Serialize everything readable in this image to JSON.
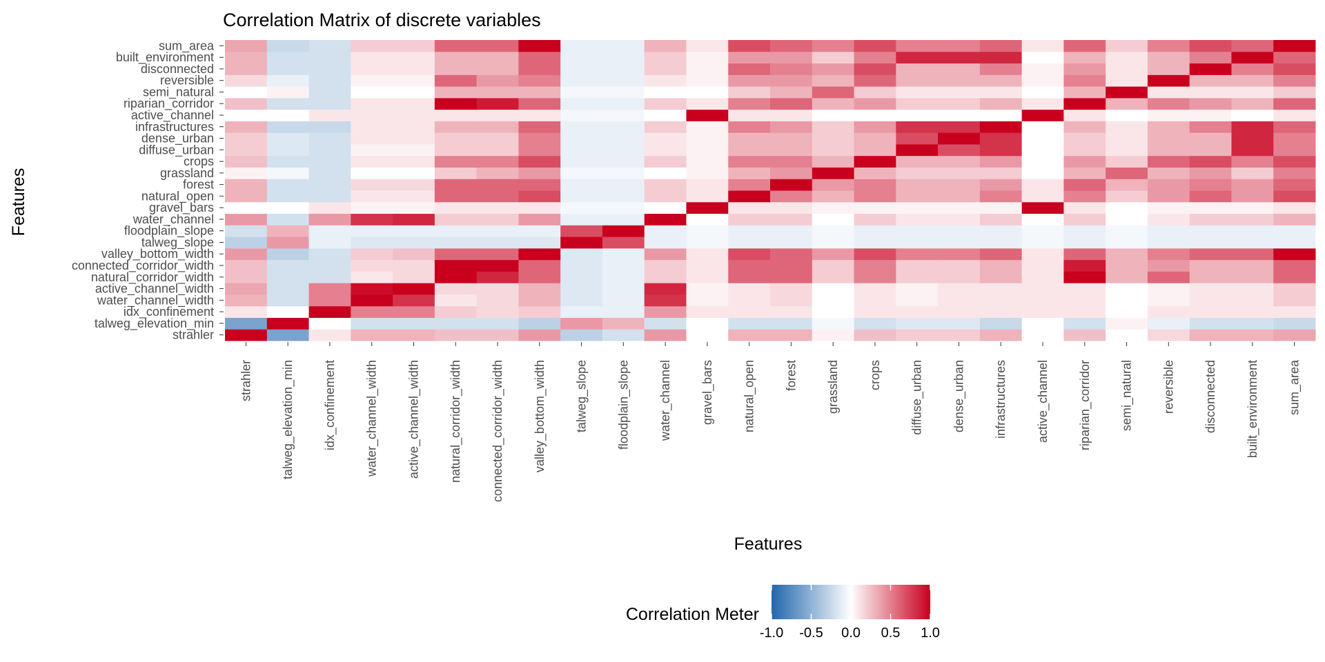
{
  "chart_data": {
    "type": "heatmap",
    "title": "Correlation Matrix of discrete variables",
    "xlabel": "Features",
    "ylabel": "Features",
    "variables": [
      "strahler",
      "talweg_elevation_min",
      "idx_confinement",
      "water_channel_width",
      "active_channel_width",
      "natural_corridor_width",
      "connected_corridor_width",
      "valley_bottom_width",
      "talweg_slope",
      "floodplain_slope",
      "water_channel",
      "gravel_bars",
      "natural_open",
      "forest",
      "grassland",
      "crops",
      "diffuse_urban",
      "dense_urban",
      "infrastructures",
      "active_channel",
      "riparian_corridor",
      "semi_natural",
      "reversible",
      "disconnected",
      "built_environment",
      "sum_area"
    ],
    "x": [
      "strahler",
      "talweg_elevation_min",
      "idx_confinement",
      "water_channel_width",
      "active_channel_width",
      "natural_corridor_width",
      "connected_corridor_width",
      "valley_bottom_width",
      "talweg_slope",
      "floodplain_slope",
      "water_channel",
      "gravel_bars",
      "natural_open",
      "forest",
      "grassland",
      "crops",
      "diffuse_urban",
      "dense_urban",
      "infrastructures",
      "active_channel",
      "riparian_corridor",
      "semi_natural",
      "reversible",
      "disconnected",
      "built_environment",
      "sum_area"
    ],
    "y": [
      "strahler",
      "talweg_elevation_min",
      "idx_confinement",
      "water_channel_width",
      "active_channel_width",
      "natural_corridor_width",
      "connected_corridor_width",
      "valley_bottom_width",
      "talweg_slope",
      "floodplain_slope",
      "water_channel",
      "gravel_bars",
      "natural_open",
      "forest",
      "grassland",
      "crops",
      "diffuse_urban",
      "dense_urban",
      "infrastructures",
      "active_channel",
      "riparian_corridor",
      "semi_natural",
      "reversible",
      "disconnected",
      "built_environment",
      "sum_area"
    ],
    "values": [
      [
        1,
        -0.6,
        0.1,
        0.3,
        0.3,
        0.25,
        0.25,
        0.4,
        -0.3,
        -0.2,
        0.4,
        0,
        0.3,
        0.3,
        0.05,
        0.25,
        0.2,
        0.2,
        0.3,
        0,
        0.25,
        0,
        0.15,
        0.3,
        0.3,
        0.35
      ],
      [
        -0.6,
        1,
        0,
        -0.2,
        -0.2,
        -0.2,
        -0.2,
        -0.3,
        0.4,
        0.3,
        -0.2,
        0,
        -0.2,
        -0.2,
        -0.05,
        -0.2,
        -0.15,
        -0.15,
        -0.25,
        0,
        -0.2,
        0.05,
        -0.1,
        -0.2,
        -0.2,
        -0.25
      ],
      [
        0.1,
        0,
        1,
        0.5,
        0.5,
        0.2,
        0.15,
        0.2,
        -0.1,
        -0.1,
        0.4,
        0.1,
        0.1,
        0.1,
        0,
        0.1,
        0.1,
        0.1,
        0.1,
        0.1,
        0.1,
        0,
        0.1,
        0.1,
        0.1,
        0.1
      ],
      [
        0.3,
        -0.2,
        0.5,
        1,
        0.8,
        0.1,
        0.15,
        0.3,
        -0.15,
        -0.1,
        0.8,
        0.05,
        0.1,
        0.15,
        0,
        0.1,
        0.05,
        0.1,
        0.1,
        0.1,
        0.1,
        0,
        0.05,
        0.1,
        0.1,
        0.2
      ],
      [
        0.35,
        -0.2,
        0.5,
        0.95,
        1,
        0.15,
        0.15,
        0.3,
        -0.15,
        -0.1,
        0.85,
        0.05,
        0.1,
        0.15,
        0,
        0.1,
        0.05,
        0.1,
        0.1,
        0.1,
        0.1,
        0,
        0.05,
        0.1,
        0.1,
        0.2
      ],
      [
        0.25,
        -0.2,
        -0.2,
        0.1,
        0.15,
        1,
        0.85,
        0.6,
        -0.15,
        -0.1,
        0.2,
        0.1,
        0.6,
        0.6,
        0.2,
        0.5,
        0.2,
        0.2,
        0.3,
        0.1,
        1,
        0.3,
        0.6,
        0.3,
        0.3,
        0.6
      ],
      [
        0.25,
        -0.2,
        -0.2,
        0.15,
        0.15,
        1,
        1,
        0.6,
        -0.15,
        -0.1,
        0.2,
        0.1,
        0.6,
        0.6,
        0.2,
        0.5,
        0.2,
        0.2,
        0.3,
        0.1,
        0.9,
        0.3,
        0.4,
        0.3,
        0.3,
        0.6
      ],
      [
        0.4,
        -0.3,
        -0.2,
        0.2,
        0.25,
        0.6,
        0.6,
        1,
        -0.15,
        -0.1,
        0.4,
        0.1,
        0.7,
        0.6,
        0.4,
        0.7,
        0.5,
        0.5,
        0.6,
        0.1,
        0.6,
        0.3,
        0.5,
        0.6,
        0.6,
        1
      ],
      [
        -0.3,
        0.4,
        -0.1,
        -0.15,
        -0.15,
        -0.15,
        -0.15,
        -0.15,
        1,
        0.7,
        -0.1,
        -0.05,
        -0.1,
        -0.1,
        -0.05,
        -0.1,
        -0.1,
        -0.1,
        -0.1,
        -0.05,
        -0.1,
        -0.05,
        -0.1,
        -0.1,
        -0.1,
        -0.1
      ],
      [
        -0.2,
        0.3,
        -0.1,
        -0.1,
        -0.1,
        -0.1,
        -0.1,
        -0.1,
        0.7,
        1,
        -0.1,
        -0.05,
        -0.1,
        -0.1,
        -0.05,
        -0.1,
        -0.1,
        -0.1,
        -0.1,
        -0.05,
        -0.1,
        -0.05,
        -0.1,
        -0.1,
        -0.1,
        -0.1
      ],
      [
        0.4,
        -0.2,
        0.4,
        0.8,
        0.85,
        0.2,
        0.2,
        0.4,
        -0.1,
        -0.1,
        1,
        0,
        0.2,
        0.2,
        0,
        0.2,
        0.1,
        0.1,
        0.2,
        0,
        0.2,
        0,
        0.1,
        0.2,
        0.2,
        0.3
      ],
      [
        0,
        0,
        0.1,
        0.05,
        0.05,
        0.1,
        0.1,
        0.1,
        -0.05,
        -0.05,
        0,
        1,
        0.1,
        0.1,
        0.05,
        0.05,
        0.05,
        0.05,
        0.05,
        1,
        0.1,
        0,
        0.05,
        0.05,
        0.05,
        0.1
      ],
      [
        0.3,
        -0.2,
        -0.2,
        0.1,
        0.1,
        0.6,
        0.6,
        0.7,
        -0.1,
        -0.1,
        0.2,
        0.1,
        1,
        0.5,
        0.3,
        0.5,
        0.3,
        0.3,
        0.5,
        0.1,
        0.5,
        0.2,
        0.4,
        0.6,
        0.4,
        0.7
      ],
      [
        0.3,
        -0.2,
        -0.2,
        0.15,
        0.15,
        0.6,
        0.6,
        0.6,
        -0.1,
        -0.1,
        0.2,
        0.1,
        0.5,
        1,
        0.4,
        0.5,
        0.3,
        0.3,
        0.4,
        0.1,
        0.6,
        0.3,
        0.4,
        0.5,
        0.4,
        0.6
      ],
      [
        0.05,
        -0.05,
        -0.2,
        0,
        0,
        0.2,
        0.3,
        0.4,
        -0.05,
        -0.05,
        0,
        0.05,
        0.3,
        0.4,
        1,
        0.3,
        0.2,
        0.2,
        0.2,
        0,
        0.3,
        0.6,
        0.3,
        0.4,
        0.2,
        0.5
      ],
      [
        0.25,
        -0.2,
        -0.2,
        0.1,
        0.1,
        0.5,
        0.5,
        0.7,
        -0.1,
        -0.1,
        0.2,
        0.05,
        0.5,
        0.5,
        0.3,
        1,
        0.3,
        0.3,
        0.4,
        0,
        0.4,
        0.2,
        0.6,
        0.7,
        0.5,
        0.7
      ],
      [
        0.2,
        -0.15,
        -0.2,
        0.05,
        0.05,
        0.2,
        0.2,
        0.5,
        -0.1,
        -0.1,
        0.1,
        0.05,
        0.3,
        0.3,
        0.2,
        0.3,
        1,
        0.7,
        0.8,
        0,
        0.2,
        0.1,
        0.3,
        0.3,
        0.85,
        0.5
      ],
      [
        0.2,
        -0.15,
        -0.2,
        0.1,
        0.1,
        0.2,
        0.2,
        0.5,
        -0.1,
        -0.1,
        0.1,
        0.05,
        0.3,
        0.3,
        0.2,
        0.3,
        0.7,
        1,
        0.8,
        0,
        0.2,
        0.1,
        0.3,
        0.3,
        0.85,
        0.5
      ],
      [
        0.3,
        -0.25,
        -0.25,
        0.1,
        0.1,
        0.3,
        0.3,
        0.6,
        -0.1,
        -0.1,
        0.2,
        0.05,
        0.5,
        0.4,
        0.2,
        0.4,
        0.8,
        0.8,
        1,
        0,
        0.3,
        0.1,
        0.3,
        0.5,
        0.85,
        0.6
      ],
      [
        0,
        0,
        0.1,
        0.1,
        0.1,
        0.1,
        0.1,
        0.1,
        -0.05,
        -0.05,
        0,
        1,
        0.1,
        0.1,
        0,
        0,
        0,
        0,
        0,
        1,
        0.1,
        0,
        0.05,
        0.05,
        0,
        0.1
      ],
      [
        0.25,
        -0.2,
        -0.2,
        0.1,
        0.1,
        1,
        0.9,
        0.6,
        -0.1,
        -0.1,
        0.2,
        0.1,
        0.5,
        0.6,
        0.3,
        0.4,
        0.2,
        0.2,
        0.3,
        0.1,
        1,
        0.3,
        0.5,
        0.4,
        0.3,
        0.6
      ],
      [
        0,
        0.05,
        -0.2,
        0,
        0,
        0.3,
        0.3,
        0.3,
        -0.05,
        -0.05,
        0,
        0,
        0.2,
        0.3,
        0.6,
        0.2,
        0.1,
        0.1,
        0.1,
        0,
        0.3,
        1,
        0.1,
        0.1,
        0.1,
        0.2
      ],
      [
        0.15,
        -0.1,
        -0.2,
        0.05,
        0.05,
        0.6,
        0.4,
        0.5,
        -0.1,
        -0.1,
        0.1,
        0.05,
        0.4,
        0.4,
        0.3,
        0.6,
        0.3,
        0.3,
        0.3,
        0.05,
        0.5,
        0.1,
        1,
        0.3,
        0.3,
        0.5
      ],
      [
        0.3,
        -0.2,
        -0.2,
        0.1,
        0.1,
        0.3,
        0.3,
        0.6,
        -0.1,
        -0.1,
        0.2,
        0.05,
        0.6,
        0.5,
        0.4,
        0.7,
        0.3,
        0.3,
        0.5,
        0.05,
        0.4,
        0.1,
        0.3,
        1,
        0.5,
        0.7
      ],
      [
        0.3,
        -0.2,
        -0.2,
        0.1,
        0.1,
        0.3,
        0.3,
        0.6,
        -0.1,
        -0.1,
        0.2,
        0.05,
        0.4,
        0.4,
        0.2,
        0.5,
        0.85,
        0.85,
        0.85,
        0,
        0.3,
        0.1,
        0.3,
        0.5,
        1,
        0.6
      ],
      [
        0.35,
        -0.25,
        -0.2,
        0.2,
        0.2,
        0.6,
        0.6,
        1,
        -0.1,
        -0.1,
        0.3,
        0.1,
        0.7,
        0.6,
        0.5,
        0.7,
        0.5,
        0.5,
        0.6,
        0.1,
        0.6,
        0.2,
        0.5,
        0.7,
        0.6,
        1
      ]
    ],
    "colorbar": {
      "title": "Correlation Meter",
      "range": [
        -1,
        1
      ],
      "ticks": [
        "-1.0",
        "-0.5",
        "0.0",
        "0.5",
        "1.0"
      ],
      "colors": {
        "low": "#2166ac",
        "mid": "#ffffff",
        "high": "#c8001e"
      }
    }
  }
}
